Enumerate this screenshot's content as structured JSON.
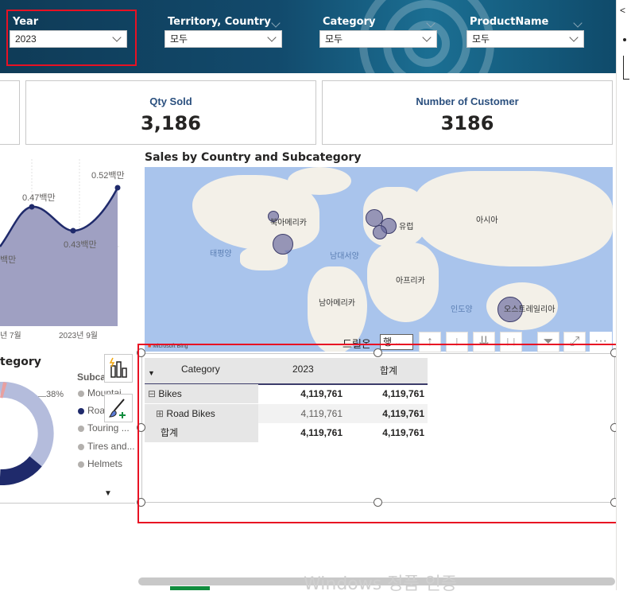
{
  "slicers": [
    {
      "label": "Year",
      "value": "2023"
    },
    {
      "label": "Territory, Country",
      "value": "모두"
    },
    {
      "label": "Category",
      "value": "모두"
    },
    {
      "label": "ProductName",
      "value": "모두"
    }
  ],
  "cards": [
    {
      "title": "Qty Sold",
      "value": "3,186"
    },
    {
      "title": "Number of Customer",
      "value": "3186"
    }
  ],
  "map": {
    "title": "Sales by Country and Subcategory",
    "labels": {
      "north_america": "북아메리카",
      "europe": "유럽",
      "asia": "아시아",
      "africa": "아프리카",
      "south_america": "남아메리카",
      "oceania": "오스트레일리아",
      "pacific": "태평양",
      "atlantic": "남대서양",
      "indian": "인도양"
    },
    "attribution": "Microsoft Bing"
  },
  "toolbar": {
    "drill_label": "드릴온",
    "drill_value": "행",
    "more": "···"
  },
  "matrix": {
    "headers": {
      "category": "Category",
      "year": "2023",
      "total": "합계"
    },
    "rows": [
      {
        "label": "Bikes",
        "expander": "⊟",
        "v2023": "4,119,761",
        "total": "4,119,761"
      },
      {
        "label": "Road Bikes",
        "expander": "⊞",
        "v2023": "4,119,761",
        "total": "4,119,761"
      },
      {
        "label": "합계",
        "expander": "",
        "v2023": "4,119,761",
        "total": "4,119,761"
      }
    ]
  },
  "line_chart": {
    "labels": [
      "0.47백만",
      "0.43백만",
      "0.52백만",
      "백만"
    ],
    "x_ticks": [
      "년 7월",
      "2023년 9월"
    ]
  },
  "donut": {
    "title": "tegory",
    "percent_label": "38%",
    "legend_title": "Subcate",
    "legend": [
      {
        "label": "Mountai",
        "color": "#b3b0ad"
      },
      {
        "label": "Road",
        "color": "#1f2a6b"
      },
      {
        "label": "Touring ...",
        "color": "#b3b0ad"
      },
      {
        "label": "Tires and...",
        "color": "#b3b0ad"
      },
      {
        "label": "Helmets",
        "color": "#b3b0ad"
      }
    ]
  },
  "watermark": "Windows 정품 인증"
}
